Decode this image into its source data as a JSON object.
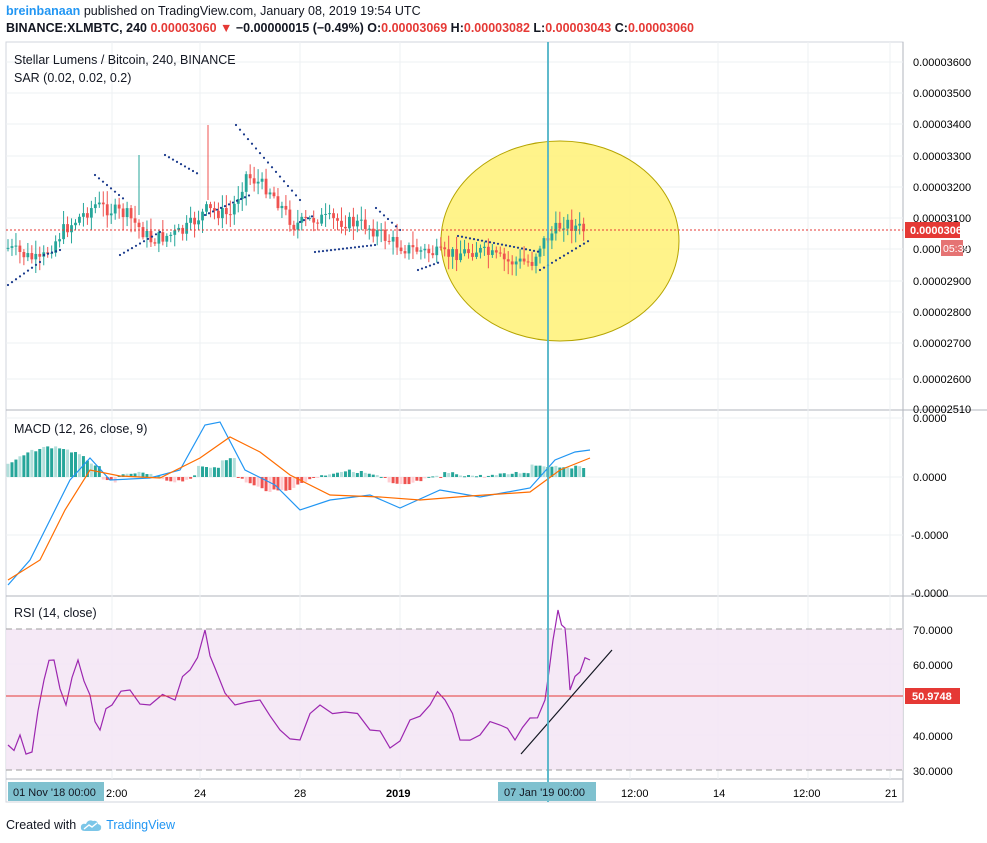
{
  "header": {
    "username": "breinbanaan",
    "published": "published on TradingView.com, January 08, 2019 19:54 UTC",
    "symbol": "BINANCE:XLMBTC, 240",
    "last": "0.00003060",
    "change": "−0.00000015 (−0.49%)",
    "open_label": "O:",
    "open": "0.00003069",
    "high_label": "H:",
    "high": "0.00003082",
    "low_label": "L:",
    "low": "0.00003043",
    "close_label": "C:",
    "close": "0.00003060"
  },
  "legend": {
    "main_title": "Stellar Lumens / Bitcoin, 240, BINANCE",
    "sar": "SAR (0.02, 0.02, 0.2)",
    "macd": "MACD (12, 26, close, 9)",
    "rsi": "RSI (14, close)"
  },
  "price_axis": {
    "ticks": [
      "0.00003600",
      "0.00003500",
      "0.00003400",
      "0.00003300",
      "0.00003200",
      "0.00003100",
      "0.00003000",
      "0.00002900",
      "0.00002800",
      "0.00002700",
      "0.00002600",
      "0.00002510"
    ],
    "current_price": "0.00003060",
    "countdown": "05:39"
  },
  "macd_axis": {
    "ticks": [
      "0.0000",
      "0.0000",
      "-0.0000",
      "-0.0000"
    ]
  },
  "rsi_axis": {
    "ticks": [
      "70.0000",
      "60.0000",
      "40.0000",
      "30.0000"
    ],
    "current": "50.9748"
  },
  "time_axis": {
    "ticks": [
      "2:00",
      "24",
      "28",
      "2019",
      "12:00",
      "14",
      "12:00",
      "21"
    ],
    "left_label": "01 Nov '18   00:00",
    "cursor_label": "07 Jan '19   00:00"
  },
  "footer": {
    "created_with": "Created with",
    "brand": "TradingView"
  },
  "colors": {
    "up": "#26a69a",
    "down": "#ef5350",
    "sar": "#1a3a8c",
    "macd": "#2196f3",
    "signal": "#ff6d00",
    "rsi": "#9c27b0",
    "highlight": "#fff176",
    "cursor": "#4fb4c8"
  },
  "chart_data": {
    "type": "candlestick",
    "price_range": [
      2.51e-05,
      3.65e-05
    ],
    "price_plus_indicators": true,
    "annotations": [
      "yellow ellipse highlighting recent consolidation",
      "rising trendline on RSI"
    ]
  }
}
